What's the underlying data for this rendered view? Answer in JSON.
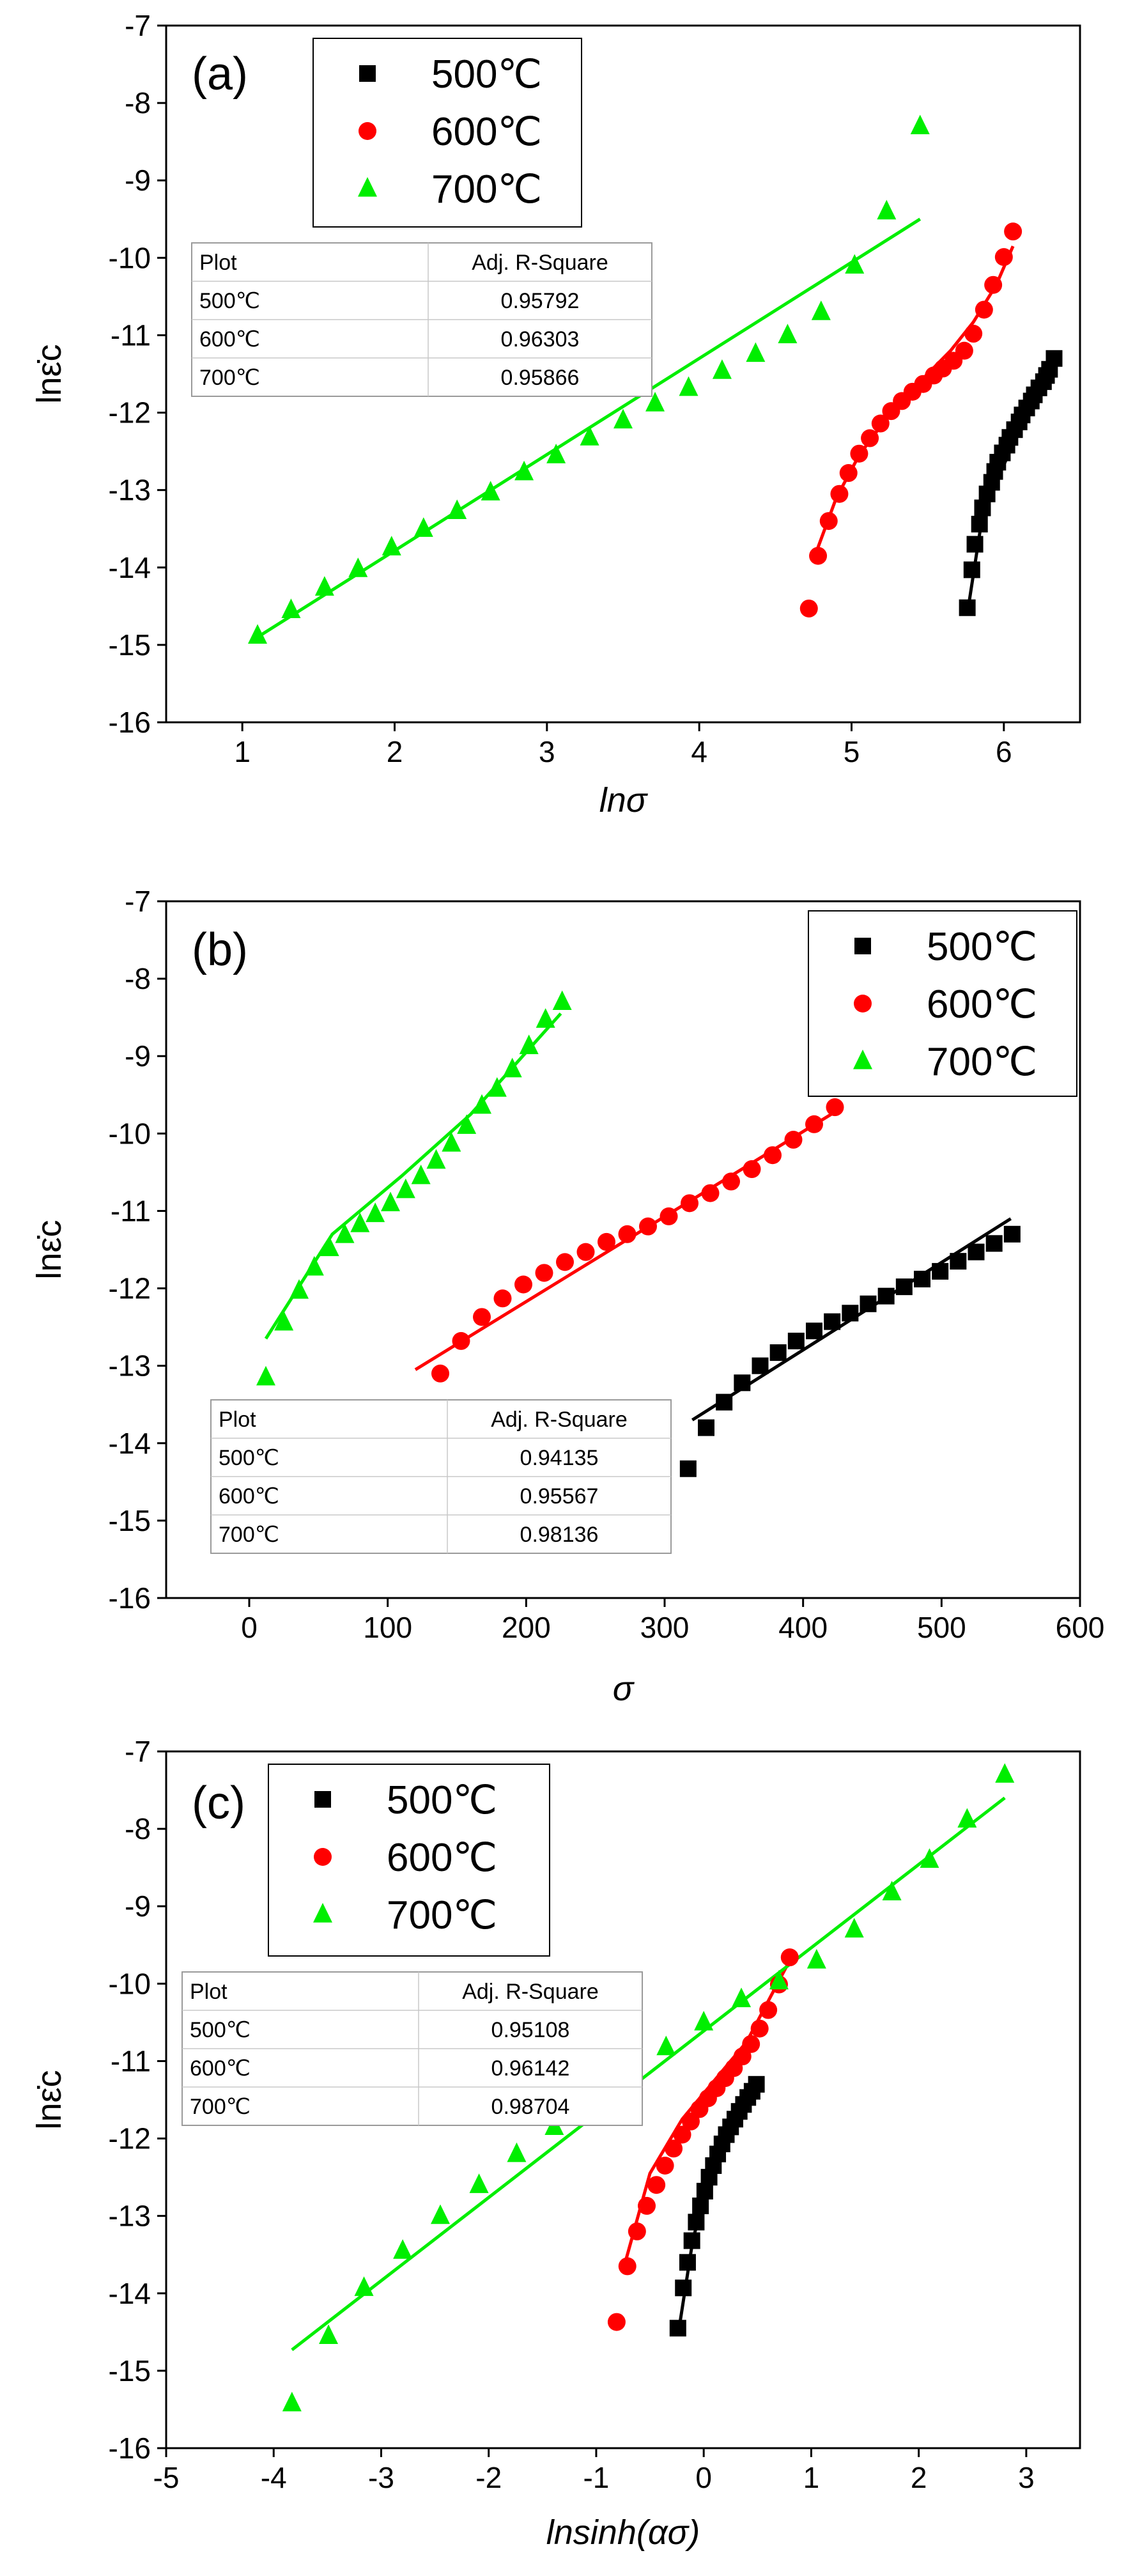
{
  "colors": {
    "500": "#000000",
    "600": "#ff0000",
    "700": "#00ee00"
  },
  "chart_data": [
    {
      "id": "a",
      "type": "scatter",
      "panel_label": "(a)",
      "xlabel": "lnσ",
      "ylabel": "lnε̇c",
      "xlim": [
        0.5,
        6.5
      ],
      "ylim": [
        -16,
        -7
      ],
      "xticks": [
        1,
        2,
        3,
        4,
        5,
        6
      ],
      "yticks": [
        -7,
        -8,
        -9,
        -10,
        -11,
        -12,
        -13,
        -14,
        -15,
        -16
      ],
      "legend_position": "top-center",
      "fit_table": {
        "header": [
          "Plot",
          "Adj. R-Square"
        ],
        "rows": [
          [
            "500℃",
            "0.95792"
          ],
          [
            "600℃",
            "0.96303"
          ],
          [
            "700℃",
            "0.95866"
          ]
        ]
      },
      "series": [
        {
          "name": "500℃",
          "marker": "square",
          "x": [
            5.76,
            5.79,
            5.81,
            5.84,
            5.86,
            5.89,
            5.92,
            5.94,
            5.96,
            5.99,
            6.02,
            6.04,
            6.07,
            6.1,
            6.12,
            6.15,
            6.18,
            6.2,
            6.23,
            6.26,
            6.28,
            6.3,
            6.33
          ],
          "y": [
            -14.52,
            -14.03,
            -13.7,
            -13.44,
            -13.23,
            -13.05,
            -12.9,
            -12.76,
            -12.64,
            -12.52,
            -12.42,
            -12.32,
            -12.22,
            -12.12,
            -12.03,
            -11.94,
            -11.85,
            -11.77,
            -11.68,
            -11.6,
            -11.52,
            -11.44,
            -11.3
          ],
          "fit_x": [
            5.76,
            5.85,
            5.95,
            6.05,
            6.15,
            6.25,
            6.33
          ],
          "fit_y": [
            -14.6,
            -13.45,
            -12.9,
            -12.45,
            -12.05,
            -11.68,
            -11.35
          ]
        },
        {
          "name": "600℃",
          "marker": "circle",
          "x": [
            4.72,
            4.78,
            4.85,
            4.92,
            4.98,
            5.05,
            5.12,
            5.19,
            5.26,
            5.33,
            5.4,
            5.47,
            5.54,
            5.6,
            5.67,
            5.74,
            5.8,
            5.87,
            5.93,
            6.0,
            6.06
          ],
          "y": [
            -14.53,
            -13.85,
            -13.4,
            -13.05,
            -12.78,
            -12.53,
            -12.33,
            -12.14,
            -11.98,
            -11.85,
            -11.73,
            -11.63,
            -11.52,
            -11.43,
            -11.33,
            -11.2,
            -10.98,
            -10.67,
            -10.35,
            -9.99,
            -9.66
          ],
          "fit_x": [
            4.75,
            4.9,
            5.05,
            5.2,
            5.35,
            5.5,
            5.65,
            5.8,
            5.95,
            6.06
          ],
          "fit_y": [
            -13.9,
            -13.1,
            -12.55,
            -12.15,
            -11.8,
            -11.5,
            -11.2,
            -10.83,
            -10.35,
            -9.85
          ]
        },
        {
          "name": "700℃",
          "marker": "triangle",
          "x": [
            1.1,
            1.32,
            1.54,
            1.76,
            1.98,
            2.19,
            2.41,
            2.63,
            2.85,
            3.06,
            3.28,
            3.5,
            3.71,
            3.93,
            4.15,
            4.37,
            4.58,
            4.8,
            5.02,
            5.23,
            5.45
          ],
          "y": [
            -14.88,
            -14.55,
            -14.26,
            -14.02,
            -13.74,
            -13.5,
            -13.27,
            -13.03,
            -12.77,
            -12.55,
            -12.32,
            -12.1,
            -11.88,
            -11.68,
            -11.46,
            -11.24,
            -11.0,
            -10.7,
            -10.1,
            -9.4,
            -8.3
          ],
          "fit_x": [
            1.1,
            5.45
          ],
          "fit_y": [
            -14.9,
            -9.5
          ]
        }
      ]
    },
    {
      "id": "b",
      "type": "scatter",
      "panel_label": "(b)",
      "xlabel": "σ",
      "ylabel": "lnε̇c",
      "xlim": [
        -60,
        600
      ],
      "ylim": [
        -16,
        -7
      ],
      "xticks": [
        0,
        100,
        200,
        300,
        400,
        500,
        600
      ],
      "yticks": [
        -7,
        -8,
        -9,
        -10,
        -11,
        -12,
        -13,
        -14,
        -15,
        -16
      ],
      "legend_position": "top-right",
      "fit_table": {
        "header": [
          "Plot",
          "Adj. R-Square"
        ],
        "rows": [
          [
            "500℃",
            "0.94135"
          ],
          [
            "600℃",
            "0.95567"
          ],
          [
            "700℃",
            "0.98136"
          ]
        ]
      },
      "series": [
        {
          "name": "500℃",
          "marker": "square",
          "x": [
            317,
            330,
            343,
            356,
            369,
            382,
            395,
            408,
            421,
            434,
            447,
            460,
            473,
            486,
            499,
            512,
            525,
            538,
            551
          ],
          "y": [
            -14.33,
            -13.8,
            -13.47,
            -13.22,
            -13.0,
            -12.83,
            -12.68,
            -12.55,
            -12.43,
            -12.32,
            -12.2,
            -12.1,
            -11.98,
            -11.88,
            -11.78,
            -11.65,
            -11.53,
            -11.42,
            -11.3
          ],
          "fit_x": [
            320,
            550
          ],
          "fit_y": [
            -13.7,
            -11.1
          ]
        },
        {
          "name": "600℃",
          "marker": "circle",
          "x": [
            138,
            153,
            168,
            183,
            198,
            213,
            228,
            243,
            258,
            273,
            288,
            303,
            318,
            333,
            348,
            363,
            378,
            393,
            408,
            423
          ],
          "y": [
            -13.1,
            -12.68,
            -12.37,
            -12.13,
            -11.95,
            -11.8,
            -11.66,
            -11.53,
            -11.4,
            -11.3,
            -11.2,
            -11.07,
            -10.9,
            -10.77,
            -10.62,
            -10.46,
            -10.28,
            -10.08,
            -9.88,
            -9.66
          ],
          "fit_x": [
            120,
            425
          ],
          "fit_y": [
            -13.05,
            -9.7
          ]
        },
        {
          "name": "700℃",
          "marker": "triangle",
          "x": [
            12,
            25,
            36,
            47,
            58,
            69,
            80,
            91,
            102,
            113,
            124,
            135,
            146,
            157,
            168,
            179,
            190,
            202,
            214,
            226
          ],
          "y": [
            -13.15,
            -12.44,
            -12.03,
            -11.73,
            -11.48,
            -11.31,
            -11.17,
            -11.04,
            -10.9,
            -10.73,
            -10.55,
            -10.35,
            -10.13,
            -9.9,
            -9.64,
            -9.42,
            -9.17,
            -8.87,
            -8.53,
            -8.3
          ],
          "fit_x": [
            12,
            60,
            110,
            160,
            225
          ],
          "fit_y": [
            -12.65,
            -11.3,
            -10.55,
            -9.75,
            -8.45
          ]
        }
      ]
    },
    {
      "id": "c",
      "type": "scatter",
      "panel_label": "(c)",
      "xlabel": "lnsinh(ασ)",
      "ylabel": "lnε̇c",
      "xlim": [
        -5,
        3.5
      ],
      "ylim": [
        -16,
        -7
      ],
      "xticks": [
        -5,
        -4,
        -3,
        -2,
        -1,
        0,
        1,
        2,
        3
      ],
      "yticks": [
        -7,
        -8,
        -9,
        -10,
        -11,
        -12,
        -13,
        -14,
        -15,
        -16
      ],
      "legend_position": "top-left",
      "fit_table": {
        "header": [
          "Plot",
          "Adj. R-Square"
        ],
        "rows": [
          [
            "500℃",
            "0.95108"
          ],
          [
            "600℃",
            "0.96142"
          ],
          [
            "700℃",
            "0.98704"
          ]
        ]
      },
      "series": [
        {
          "name": "500℃",
          "marker": "square",
          "x": [
            -0.24,
            -0.19,
            -0.15,
            -0.11,
            -0.07,
            -0.03,
            0.01,
            0.05,
            0.09,
            0.13,
            0.17,
            0.21,
            0.25,
            0.29,
            0.33,
            0.37,
            0.41,
            0.45,
            0.49
          ],
          "y": [
            -14.45,
            -13.93,
            -13.6,
            -13.32,
            -13.08,
            -12.87,
            -12.68,
            -12.5,
            -12.35,
            -12.2,
            -12.07,
            -11.95,
            -11.85,
            -11.75,
            -11.65,
            -11.56,
            -11.47,
            -11.39,
            -11.3
          ],
          "fit_x": [
            -0.24,
            -0.1,
            0.05,
            0.2,
            0.35,
            0.49
          ],
          "fit_y": [
            -14.55,
            -13.3,
            -12.55,
            -12.0,
            -11.6,
            -11.25
          ]
        },
        {
          "name": "600℃",
          "marker": "circle",
          "x": [
            -0.81,
            -0.71,
            -0.62,
            -0.53,
            -0.44,
            -0.36,
            -0.28,
            -0.2,
            -0.12,
            -0.04,
            0.04,
            0.12,
            0.2,
            0.28,
            0.36,
            0.44,
            0.52,
            0.6,
            0.7,
            0.8
          ],
          "y": [
            -14.37,
            -13.65,
            -13.2,
            -12.87,
            -12.6,
            -12.35,
            -12.13,
            -11.95,
            -11.78,
            -11.62,
            -11.48,
            -11.35,
            -11.22,
            -11.09,
            -10.94,
            -10.78,
            -10.58,
            -10.34,
            -10.01,
            -9.66
          ],
          "fit_x": [
            -0.75,
            -0.5,
            -0.2,
            0.1,
            0.4,
            0.8
          ],
          "fit_y": [
            -13.7,
            -12.45,
            -11.75,
            -11.25,
            -10.75,
            -9.7
          ]
        },
        {
          "name": "700℃",
          "marker": "triangle",
          "x": [
            -3.83,
            -3.49,
            -3.16,
            -2.8,
            -2.45,
            -2.09,
            -1.74,
            -1.39,
            -1.04,
            -0.7,
            -0.35,
            0.0,
            0.35,
            0.7,
            1.05,
            1.4,
            1.75,
            2.1,
            2.45,
            2.8
          ],
          "y": [
            -15.42,
            -14.55,
            -13.93,
            -13.45,
            -13.0,
            -12.6,
            -12.2,
            -11.85,
            -11.5,
            -11.15,
            -10.82,
            -10.5,
            -10.2,
            -9.97,
            -9.7,
            -9.3,
            -8.82,
            -8.4,
            -7.88,
            -7.3
          ],
          "fit_x": [
            -3.83,
            2.8
          ],
          "fit_y": [
            -14.73,
            -7.6
          ]
        }
      ]
    }
  ]
}
